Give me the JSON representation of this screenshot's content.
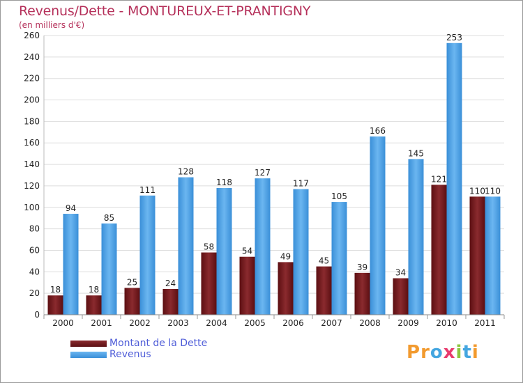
{
  "title": "Revenus/Dette - MONTUREUX-ET-PRANTIGNY",
  "subtitle": "(en milliers d'€)",
  "legend": {
    "debt_label": "Montant de la Dette",
    "revenue_label": "Revenus"
  },
  "logo": {
    "letters": [
      "P",
      "r",
      "o",
      "x",
      "i",
      "t",
      "i"
    ],
    "colors": [
      "#f29a2e",
      "#f29a2e",
      "#44a6e0",
      "#e83a6d",
      "#8dc63f",
      "#44a6e0",
      "#f29a2e"
    ]
  },
  "colors": {
    "debt": "#7a1a1e",
    "revenue": "#4aa0e6",
    "grid": "#dddddd",
    "axis_text": "#222222"
  },
  "chart_data": {
    "type": "bar",
    "categories": [
      "2000",
      "2001",
      "2002",
      "2003",
      "2004",
      "2005",
      "2006",
      "2007",
      "2008",
      "2009",
      "2010",
      "2011"
    ],
    "series": [
      {
        "name": "Montant de la Dette",
        "values": [
          18,
          18,
          25,
          24,
          58,
          54,
          49,
          45,
          39,
          34,
          121,
          110
        ]
      },
      {
        "name": "Revenus",
        "values": [
          94,
          85,
          111,
          128,
          118,
          127,
          117,
          105,
          166,
          145,
          253,
          110
        ]
      }
    ],
    "ylim": [
      0,
      260
    ],
    "yticks": [
      0,
      20,
      40,
      60,
      80,
      100,
      120,
      140,
      160,
      180,
      200,
      220,
      240,
      260
    ],
    "grid": true,
    "legend_position": "bottom-left"
  }
}
